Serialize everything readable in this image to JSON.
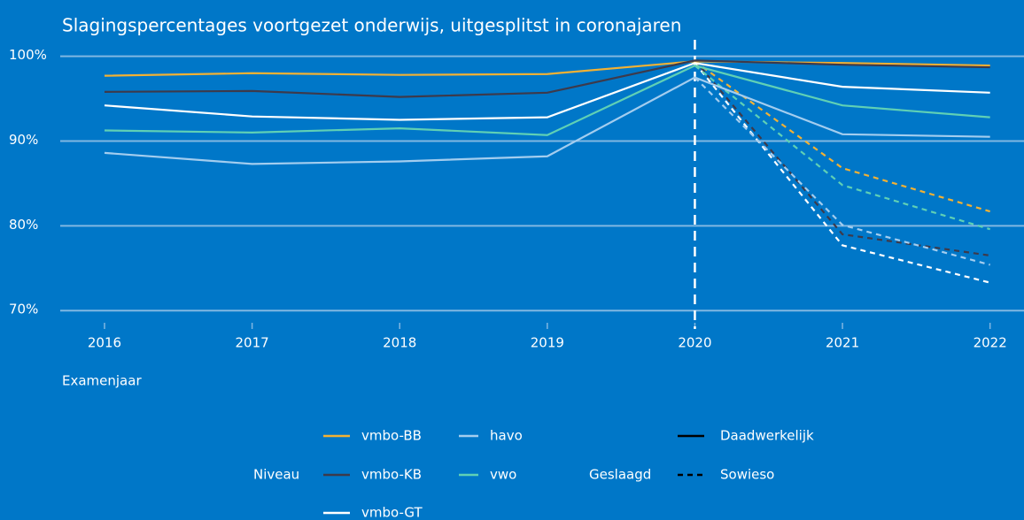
{
  "chart_data": {
    "type": "line",
    "title": "Slagingspercentages voortgezet onderwijs, uitgesplitst in coronajaren",
    "x_label": "Examenjaar",
    "x": [
      2016,
      2017,
      2018,
      2019,
      2020,
      2021,
      2022
    ],
    "xlim": [
      2015.7,
      2022.23
    ],
    "xticks": [
      2016,
      2017,
      2018,
      2019,
      2020,
      2021,
      2022
    ],
    "ylim": [
      69.4,
      101
    ],
    "yticks": [
      {
        "value": 70,
        "label": "70%"
      },
      {
        "value": 80,
        "label": "80%"
      },
      {
        "value": 90,
        "label": "90%"
      },
      {
        "value": 100,
        "label": "100%"
      }
    ],
    "grid": true,
    "vline": 2020,
    "legend_titles": {
      "color": "Niveau",
      "linetype": "Geslaagd"
    },
    "linetypes": [
      {
        "name": "Daadwerkelijk",
        "dashed": false
      },
      {
        "name": "Sowieso",
        "dashed": true
      }
    ],
    "series": [
      {
        "name": "vmbo-BB",
        "color": "#f2b134",
        "values": [
          97.7,
          98.0,
          97.8,
          97.9,
          99.4,
          99.2,
          98.9
        ],
        "dashed_values": [
          null,
          null,
          null,
          null,
          99.4,
          86.8,
          81.7
        ]
      },
      {
        "name": "vmbo-KB",
        "color": "#3d3a4b",
        "values": [
          95.8,
          95.9,
          95.2,
          95.7,
          99.5,
          99.0,
          98.7
        ],
        "dashed_values": [
          null,
          null,
          null,
          null,
          99.5,
          79.0,
          76.5
        ]
      },
      {
        "name": "vmbo-GT",
        "color": "#ffffff",
        "values": [
          94.2,
          92.9,
          92.5,
          92.8,
          99.2,
          96.4,
          95.7
        ],
        "dashed_values": [
          null,
          null,
          null,
          null,
          99.2,
          77.7,
          73.3
        ]
      },
      {
        "name": "havo",
        "color": "#a3cdef",
        "values": [
          88.6,
          87.3,
          87.6,
          88.2,
          97.5,
          90.8,
          90.5
        ],
        "dashed_values": [
          null,
          null,
          null,
          null,
          97.5,
          80.1,
          75.4
        ]
      },
      {
        "name": "vwo",
        "color": "#5fd0b5",
        "values": [
          91.25,
          91.0,
          91.5,
          90.7,
          98.9,
          94.2,
          92.8
        ],
        "dashed_values": [
          null,
          null,
          null,
          null,
          98.9,
          84.8,
          79.6
        ]
      }
    ]
  }
}
